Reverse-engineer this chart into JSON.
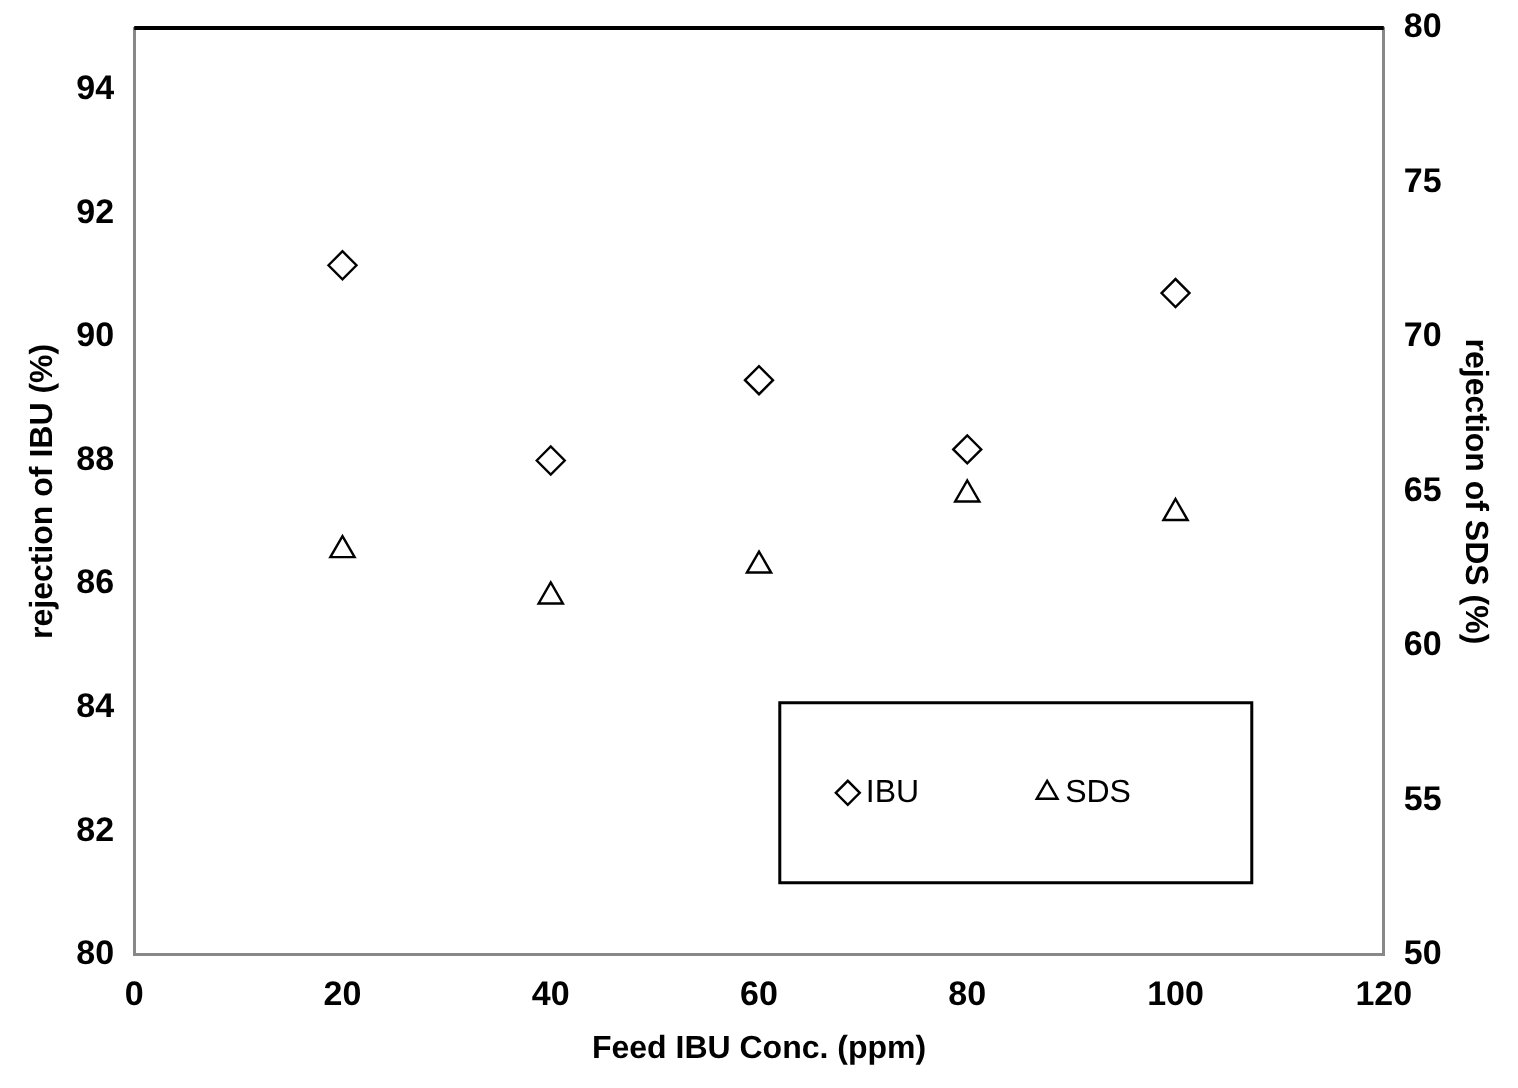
{
  "chart_data": {
    "type": "scatter",
    "xlabel": "Feed IBU Conc. (ppm)",
    "ylabel": "rejection of IBU (%)",
    "y2label": "rejection of SDS (%)",
    "x": [
      20,
      40,
      60,
      80,
      100
    ],
    "series": [
      {
        "name": "IBU",
        "color": "#000000",
        "marker": "diamond",
        "values": [
          91.16,
          88.0,
          89.3,
          88.18,
          90.71
        ]
      },
      {
        "name": "SDS",
        "color": "#000000",
        "marker": "triangle",
        "axis": "y2",
        "values": [
          63.1,
          61.6,
          62.6,
          64.9,
          64.3
        ]
      }
    ],
    "xlim": [
      0,
      120
    ],
    "xticks": [
      0,
      20,
      40,
      60,
      80,
      100,
      120
    ],
    "ylim": [
      80,
      95
    ],
    "yticks": [
      80,
      82,
      84,
      86,
      88,
      90,
      92,
      94
    ],
    "y2lim": [
      50,
      80
    ],
    "y2ticks": [
      50,
      55,
      60,
      65,
      70,
      75,
      80
    ],
    "grid": false,
    "legend": "bottom right"
  }
}
